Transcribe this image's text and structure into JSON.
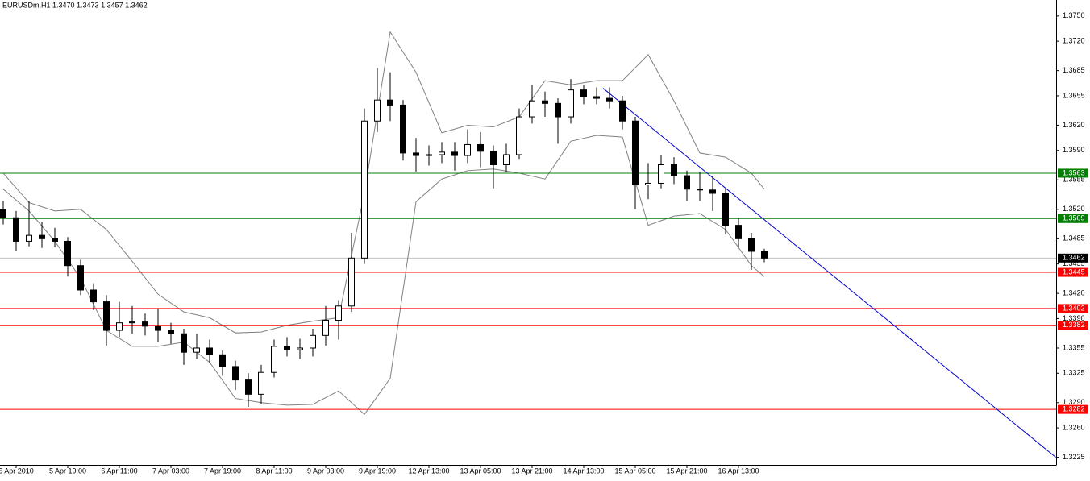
{
  "chart_data": {
    "type": "candlestick",
    "title": "EURUSDm,H1 1.3470 1.3473 1.3457 1.3462",
    "categories": [
      null,
      "5 Apr 2010",
      null,
      null,
      null,
      "5 Apr 19:00",
      null,
      null,
      null,
      "6 Apr 11:00",
      null,
      null,
      null,
      "7 Apr 03:00",
      null,
      null,
      null,
      "7 Apr 19:00",
      null,
      null,
      null,
      "8 Apr 11:00",
      null,
      null,
      null,
      "9 Apr 03:00",
      null,
      null,
      null,
      "9 Apr 19:00",
      null,
      null,
      null,
      "12 Apr 13:00",
      null,
      null,
      null,
      "13 Apr 05:00",
      null,
      null,
      null,
      "13 Apr 21:00",
      null,
      null,
      null,
      "14 Apr 13:00",
      null,
      null,
      null,
      "15 Apr 05:00",
      null,
      null,
      null,
      "15 Apr 21:00",
      null,
      null,
      null,
      "16 Apr 13:00",
      null,
      null
    ],
    "open": [
      1.352,
      1.351,
      1.3482,
      1.3489,
      1.3485,
      1.3482,
      1.3453,
      1.3424,
      1.341,
      1.3376,
      1.3385,
      1.3386,
      1.3381,
      1.3376,
      1.3372,
      1.335,
      1.3355,
      1.3347,
      1.3333,
      1.3317,
      1.33,
      1.3326,
      1.3357,
      1.3353,
      1.3355,
      1.337,
      1.3388,
      1.3405,
      1.3462,
      1.3625,
      1.365,
      1.3644,
      1.3587,
      1.3584,
      1.3585,
      1.3588,
      1.3584,
      1.3597,
      1.3589,
      1.3573,
      1.3585,
      1.363,
      1.3649,
      1.3646,
      1.363,
      1.3662,
      1.3654,
      1.3652,
      1.3649,
      1.3625,
      1.3549,
      1.3551,
      1.3573,
      1.356,
      1.3544,
      1.3543,
      1.3539,
      1.3501,
      1.3485,
      1.347
    ],
    "high": [
      1.353,
      1.3518,
      1.353,
      1.3505,
      1.3498,
      1.3487,
      1.346,
      1.3432,
      1.3418,
      1.341,
      1.3405,
      1.3396,
      1.3402,
      1.3385,
      1.3378,
      1.3372,
      1.3365,
      1.3352,
      1.334,
      1.3325,
      1.3335,
      1.3365,
      1.3368,
      1.3366,
      1.3378,
      1.3405,
      1.3412,
      1.3492,
      1.364,
      1.3688,
      1.3683,
      1.365,
      1.3605,
      1.3596,
      1.36,
      1.36,
      1.3615,
      1.3612,
      1.3596,
      1.3598,
      1.364,
      1.3668,
      1.366,
      1.3652,
      1.3675,
      1.3668,
      1.3665,
      1.3665,
      1.3655,
      1.363,
      1.3575,
      1.3585,
      1.3582,
      1.3566,
      1.3565,
      1.356,
      1.3545,
      1.351,
      1.3492,
      1.3473
    ],
    "low": [
      1.3502,
      1.347,
      1.3476,
      1.3474,
      1.3475,
      1.344,
      1.3418,
      1.34,
      1.3358,
      1.3368,
      1.3372,
      1.337,
      1.3362,
      1.336,
      1.3335,
      1.3342,
      1.3338,
      1.3322,
      1.3305,
      1.3285,
      1.3288,
      1.332,
      1.3345,
      1.3342,
      1.3345,
      1.3358,
      1.3365,
      1.3398,
      1.3455,
      1.3612,
      1.3625,
      1.3578,
      1.3565,
      1.3572,
      1.3575,
      1.3566,
      1.3575,
      1.357,
      1.3545,
      1.3565,
      1.358,
      1.3622,
      1.363,
      1.3598,
      1.3622,
      1.3645,
      1.3645,
      1.364,
      1.3615,
      1.352,
      1.3532,
      1.3545,
      1.355,
      1.353,
      1.353,
      1.3518,
      1.349,
      1.3475,
      1.3448,
      1.3457
    ],
    "close": [
      1.351,
      1.3482,
      1.3489,
      1.3485,
      1.3482,
      1.3453,
      1.3424,
      1.341,
      1.3376,
      1.3385,
      1.3386,
      1.3381,
      1.3376,
      1.3372,
      1.335,
      1.3355,
      1.3347,
      1.3333,
      1.3317,
      1.33,
      1.3326,
      1.3357,
      1.3353,
      1.3355,
      1.337,
      1.3388,
      1.3405,
      1.3462,
      1.3625,
      1.365,
      1.3644,
      1.3587,
      1.3584,
      1.3585,
      1.3588,
      1.3584,
      1.3597,
      1.3589,
      1.3573,
      1.3585,
      1.363,
      1.3649,
      1.3646,
      1.363,
      1.3662,
      1.3654,
      1.3652,
      1.3649,
      1.3625,
      1.3549,
      1.3551,
      1.3573,
      1.356,
      1.3544,
      1.3543,
      1.3539,
      1.3501,
      1.3485,
      1.347,
      1.3462
    ],
    "bands": {
      "color": "#808080",
      "x": [
        0,
        2,
        4,
        6,
        8,
        10,
        12,
        14,
        16,
        18,
        20,
        22,
        24,
        26,
        28,
        30,
        32,
        34,
        36,
        38,
        40,
        42,
        44,
        46,
        48,
        50,
        52,
        54,
        56,
        58,
        59
      ],
      "upper": [
        1.3563,
        1.3528,
        1.3518,
        1.352,
        1.3496,
        1.3458,
        1.3419,
        1.3398,
        1.3391,
        1.3373,
        1.3374,
        1.3382,
        1.3387,
        1.3391,
        1.3539,
        1.3731,
        1.3683,
        1.3611,
        1.362,
        1.3618,
        1.363,
        1.3673,
        1.3668,
        1.3673,
        1.3673,
        1.3704,
        1.3649,
        1.3587,
        1.3582,
        1.3563,
        1.3544
      ],
      "lower": [
        1.3544,
        1.3518,
        1.3482,
        1.3438,
        1.3376,
        1.3357,
        1.3357,
        1.3362,
        1.3338,
        1.3295,
        1.329,
        1.3287,
        1.3288,
        1.3304,
        1.3276,
        1.3319,
        1.3529,
        1.3556,
        1.3566,
        1.3568,
        1.3563,
        1.3556,
        1.3601,
        1.3608,
        1.3606,
        1.3501,
        1.3512,
        1.3515,
        1.3496,
        1.3453,
        1.344
      ]
    },
    "trendline": {
      "color": "#0000cc",
      "x": [
        46.5,
        81.6
      ],
      "y": [
        1.3664,
        1.3225
      ]
    },
    "levels": [
      {
        "value": 1.3563,
        "color": "#008000"
      },
      {
        "value": 1.3509,
        "color": "#008000"
      },
      {
        "value": 1.3445,
        "color": "#ff0000"
      },
      {
        "value": 1.3402,
        "color": "#ff0000"
      },
      {
        "value": 1.3382,
        "color": "#ff0000"
      },
      {
        "value": 1.3282,
        "color": "#ff0000"
      }
    ],
    "last_price": 1.3462,
    "ylim": [
      1.3216,
      1.3769
    ],
    "yticks": [
      {
        "value": 1.375,
        "label": "1.3750"
      },
      {
        "value": 1.372,
        "label": "1.3720"
      },
      1.3685,
      1.3655,
      {
        "value": 1.362,
        "label": "1.3620"
      },
      {
        "value": 1.359,
        "label": "1.3590"
      },
      1.3555,
      {
        "value": 1.352,
        "label": "1.3520"
      },
      1.3485,
      1.3455,
      {
        "value": 1.342,
        "label": "1.3420"
      },
      {
        "value": 1.339,
        "label": "1.3390"
      },
      1.3355,
      1.3325,
      {
        "value": 1.329,
        "label": "1.3290"
      },
      {
        "value": 1.326,
        "label": "1.3260"
      },
      1.3225
    ]
  }
}
